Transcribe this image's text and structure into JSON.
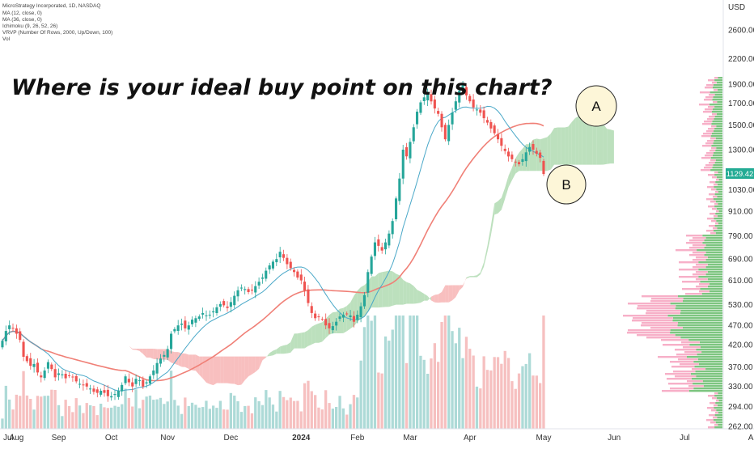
{
  "chart_data": {
    "type": "candlestick",
    "headline": "Where is your ideal buy point on this chart?",
    "legend": [
      "MicroStrategy Incorporated, 1D, NASDAQ",
      "MA (12, close, 0)",
      "MA (36, close, 0)",
      "Ichimoku (9, 26, 52, 26)",
      "VRVP (Number Of Rows, 2000, Up/Down, 100)",
      "Vol"
    ],
    "currency_label": "USD",
    "y_scale": "log",
    "y_ticks": [
      2600,
      2200,
      1900,
      1700,
      1500,
      1300,
      1030,
      910,
      790,
      690,
      610,
      530,
      470,
      420,
      370,
      330,
      294,
      262
    ],
    "y_tick_labels": [
      "2600.00",
      "2200.00",
      "1900.00",
      "1700.00",
      "1500.00",
      "1300.00",
      "1030.00",
      "910.00",
      "790.00",
      "690.00",
      "610.00",
      "530.00",
      "470.00",
      "420.00",
      "370.00",
      "330.00",
      "294.00",
      "262.00"
    ],
    "ylim": [
      262,
      2800
    ],
    "x_tick_labels": [
      "Jul",
      "Aug",
      "Sep",
      "Oct",
      "Nov",
      "Dec",
      "2024",
      "Feb",
      "Mar",
      "Apr",
      "May",
      "Jun",
      "Jul",
      "Aug"
    ],
    "last_price": 1129.42,
    "last_price_label": "1129.42",
    "callouts": [
      {
        "label": "A",
        "price": 1700
      },
      {
        "label": "B",
        "price": 1040
      }
    ],
    "months": [
      {
        "label": "Jul",
        "closes": [
          430,
          455,
          470,
          462
        ]
      },
      {
        "label": "Aug",
        "closes": [
          448,
          432,
          392,
          382,
          372,
          376,
          358,
          348,
          362,
          380,
          365,
          348
        ]
      },
      {
        "label": "Sep",
        "closes": [
          356,
          354,
          346,
          352,
          348,
          340,
          335,
          333,
          330,
          326,
          320,
          318,
          322,
          318,
          312
        ]
      },
      {
        "label": "Oct",
        "closes": [
          312,
          316,
          322,
          333,
          350,
          338,
          330,
          345,
          342,
          330,
          338,
          350,
          362,
          378,
          388,
          396
        ]
      },
      {
        "label": "Nov",
        "closes": [
          410,
          448,
          460,
          470,
          475,
          462,
          470,
          486,
          490,
          495,
          505,
          498,
          500,
          510,
          522,
          532,
          528,
          520
        ]
      },
      {
        "label": "Dec",
        "closes": [
          538,
          558,
          576,
          585,
          580,
          570,
          575,
          590,
          605,
          620,
          645,
          665,
          680,
          690,
          720,
          695,
          670,
          655,
          640,
          620
        ]
      },
      {
        "label": "2024",
        "closes": [
          610,
          575,
          535,
          505,
          490,
          495,
          488,
          470,
          462,
          468,
          480,
          495,
          500,
          502,
          498,
          480
        ]
      },
      {
        "label": "Feb",
        "closes": [
          500,
          525,
          560,
          640,
          700,
          760,
          745,
          725,
          760,
          800,
          860,
          980,
          1100,
          1300,
          1250
        ]
      },
      {
        "label": "Mar",
        "closes": [
          1360,
          1480,
          1620,
          1710,
          1760,
          1800,
          1720,
          1650,
          1600,
          1480,
          1380,
          1500,
          1610,
          1720,
          1830,
          1900,
          1780
        ]
      },
      {
        "label": "Apr",
        "closes": [
          1720,
          1660,
          1640,
          1610,
          1560,
          1520,
          1470,
          1430,
          1380,
          1330,
          1290,
          1250,
          1230,
          1210,
          1195,
          1230,
          1280,
          1320,
          1300,
          1270,
          1240
        ]
      },
      {
        "label": "May",
        "closes": [
          1129.42
        ]
      }
    ],
    "volume_max": 100
  }
}
